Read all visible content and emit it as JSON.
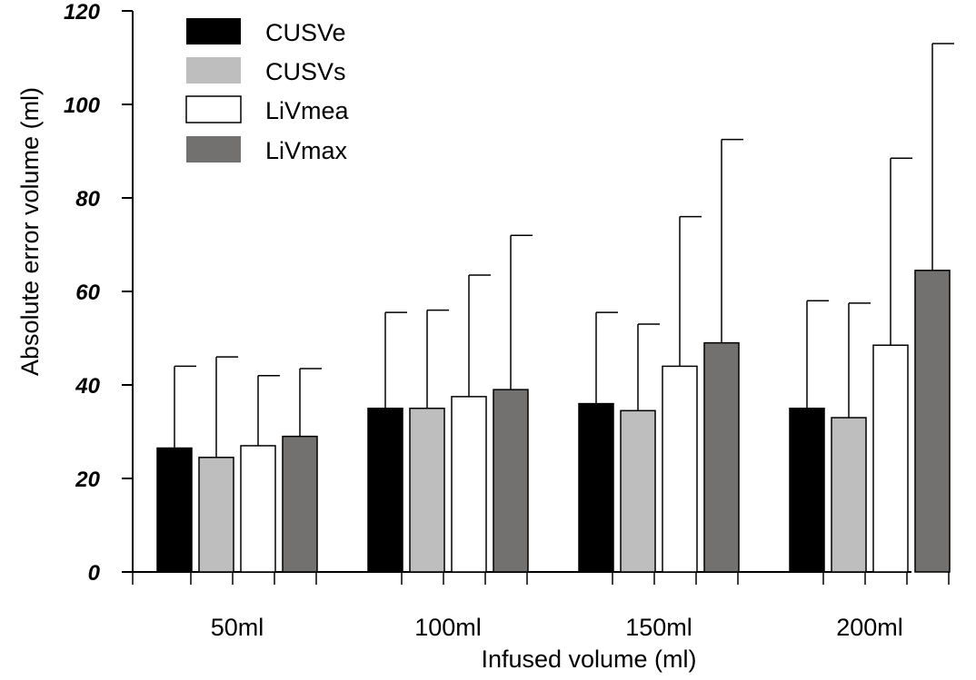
{
  "chart_data": {
    "type": "bar",
    "title": "",
    "xlabel": "Infused volume (ml)",
    "ylabel": "Absolute error volume (ml)",
    "ylim": [
      0,
      120
    ],
    "yticks": [
      0,
      20,
      40,
      60,
      80,
      100,
      120
    ],
    "ytick_labels": [
      "0",
      "20",
      "40",
      "60",
      "80",
      "100",
      "120"
    ],
    "categories": [
      "50ml",
      "100ml",
      "150ml",
      "200ml"
    ],
    "legend_position": "top-left",
    "grid": false,
    "series": [
      {
        "name": "CUSVe",
        "color": "#000000",
        "values": [
          26.5,
          35,
          36,
          35
        ],
        "error": [
          17.5,
          20.5,
          19.5,
          23
        ]
      },
      {
        "name": "CUSVs",
        "color": "#bebebe",
        "values": [
          24.5,
          35,
          34.5,
          33
        ],
        "error": [
          21.5,
          21,
          18.5,
          24.5
        ]
      },
      {
        "name": "LiVmea",
        "color": "#ffffff",
        "values": [
          27,
          37.5,
          44,
          48.5
        ],
        "error": [
          15,
          26,
          32,
          40
        ]
      },
      {
        "name": "LiVmax",
        "color": "#737070",
        "values": [
          29,
          39,
          49,
          64.5
        ],
        "error": [
          14.5,
          33,
          43.5,
          48.5
        ]
      }
    ]
  }
}
